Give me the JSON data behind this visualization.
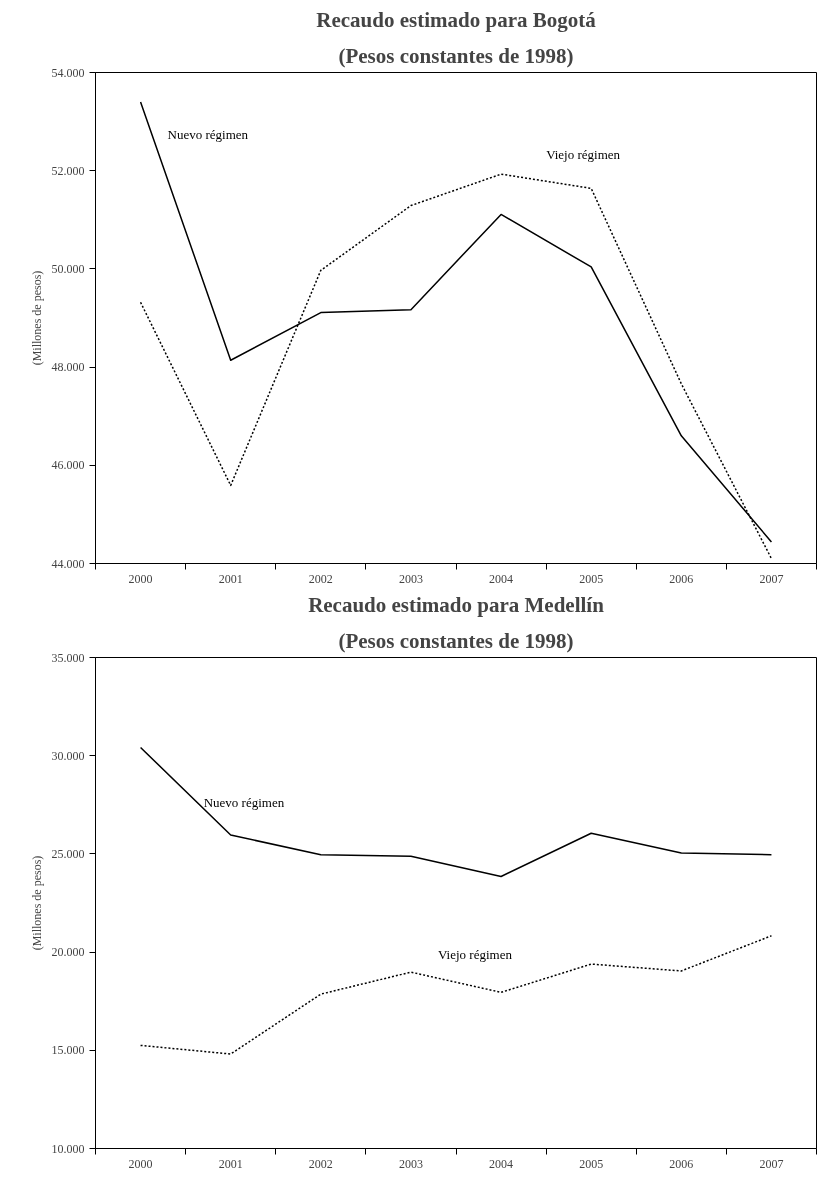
{
  "chart_data": [
    {
      "type": "line",
      "title": "Recaudo estimado para Bogotá",
      "subtitle": "(Pesos constantes de 1998)",
      "ylabel": "(Millones de pesos)",
      "categories": [
        "2000",
        "2001",
        "2002",
        "2003",
        "2004",
        "2005",
        "2006",
        "2007"
      ],
      "ylim": [
        44000,
        54000
      ],
      "yticks": [
        {
          "value": 44000,
          "label": "44.000"
        },
        {
          "value": 46000,
          "label": "46.000"
        },
        {
          "value": 48000,
          "label": "48.000"
        },
        {
          "value": 50000,
          "label": "50.000"
        },
        {
          "value": 52000,
          "label": "52.000"
        },
        {
          "value": 54000,
          "label": "54.000"
        }
      ],
      "grid": false,
      "legend": false,
      "marker": "none",
      "series": [
        {
          "name": "Nuevo régimen",
          "color": "#000000",
          "line_style": "solid",
          "values": [
            53400,
            48140,
            49110,
            49170,
            51110,
            50040,
            46600,
            44440
          ]
        },
        {
          "name": "Viejo régimen",
          "color": "#000000",
          "line_style": "dotted",
          "values": [
            49320,
            45590,
            49970,
            51290,
            51930,
            51640,
            47660,
            44100
          ]
        }
      ]
    },
    {
      "type": "line",
      "title": "Recaudo estimado para Medellín",
      "subtitle": "(Pesos constantes de 1998)",
      "ylabel": "(Millones de pesos)",
      "categories": [
        "2000",
        "2001",
        "2002",
        "2003",
        "2004",
        "2005",
        "2006",
        "2007"
      ],
      "ylim": [
        10000,
        35000
      ],
      "yticks": [
        {
          "value": 10000,
          "label": "10.000"
        },
        {
          "value": 15000,
          "label": "15.000"
        },
        {
          "value": 20000,
          "label": "20.000"
        },
        {
          "value": 25000,
          "label": "25.000"
        },
        {
          "value": 30000,
          "label": "30.000"
        },
        {
          "value": 35000,
          "label": "35.000"
        }
      ],
      "grid": false,
      "legend": false,
      "marker": "none",
      "series": [
        {
          "name": "Nuevo régimen",
          "color": "#000000",
          "line_style": "solid",
          "values": [
            30420,
            25960,
            24960,
            24880,
            23850,
            26050,
            25050,
            24960
          ]
        },
        {
          "name": "Viejo régimen",
          "color": "#000000",
          "line_style": "dotted",
          "values": [
            15250,
            14810,
            17860,
            18980,
            17950,
            19390,
            19040,
            20830
          ]
        }
      ]
    }
  ]
}
